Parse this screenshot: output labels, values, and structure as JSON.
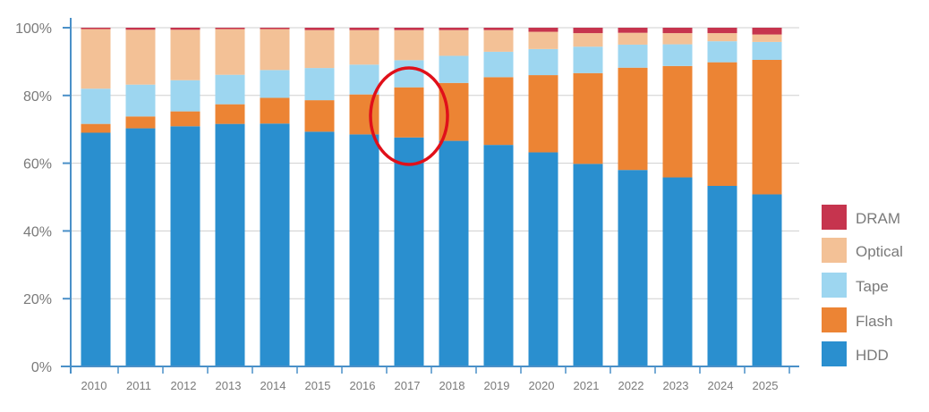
{
  "chart_data": {
    "type": "bar",
    "stacked": true,
    "normalized": true,
    "categories": [
      "2010",
      "2011",
      "2012",
      "2013",
      "2014",
      "2015",
      "2016",
      "2017",
      "2018",
      "2019",
      "2020",
      "2021",
      "2022",
      "2023",
      "2024",
      "2025"
    ],
    "y_ticks": [
      "0%",
      "20%",
      "40%",
      "60%",
      "80%",
      "100%"
    ],
    "ylim": [
      0,
      100
    ],
    "grid": true,
    "legend_position": "right-bottom",
    "series": [
      {
        "name": "HDD",
        "color": "#2a8fcf",
        "values": [
          69,
          70.3,
          70.9,
          71.6,
          71.7,
          69.3,
          68.5,
          67.6,
          66.6,
          65.4,
          63.2,
          59.8,
          58.0,
          55.8,
          53.3,
          50.8
        ]
      },
      {
        "name": "Flash",
        "color": "#ec8434",
        "values": [
          2.6,
          3.5,
          4.4,
          5.8,
          7.6,
          9.3,
          11.8,
          14.8,
          17.1,
          20.0,
          22.8,
          26.8,
          30.2,
          32.9,
          36.5,
          39.7
        ]
      },
      {
        "name": "Tape",
        "color": "#9dd6f0",
        "values": [
          10.4,
          9.4,
          9.2,
          8.7,
          8.2,
          9.5,
          8.8,
          8.0,
          8.0,
          7.5,
          7.7,
          7.8,
          6.8,
          6.4,
          6.2,
          5.3
        ]
      },
      {
        "name": "Optical",
        "color": "#f3c196",
        "values": [
          17.6,
          16.2,
          14.9,
          13.5,
          12.1,
          11.2,
          10.2,
          8.9,
          7.6,
          6.4,
          5.1,
          4.0,
          3.5,
          3.3,
          2.4,
          2.2
        ]
      },
      {
        "name": "DRAM",
        "color": "#c6344e",
        "values": [
          0.4,
          0.6,
          0.6,
          0.4,
          0.4,
          0.7,
          0.7,
          0.7,
          0.7,
          0.7,
          1.2,
          1.6,
          1.5,
          1.6,
          1.6,
          2.0
        ]
      }
    ],
    "legend_order": [
      "DRAM",
      "Optical",
      "Tape",
      "Flash",
      "HDD"
    ],
    "highlight": {
      "category": "2017",
      "shape": "ellipse",
      "color": "#e0101a"
    }
  }
}
